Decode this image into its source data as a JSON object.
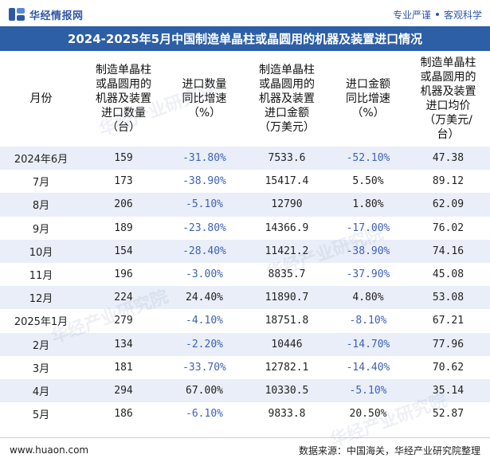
{
  "header": {
    "brand": "华经情报网",
    "slogan_left": "专业严谨",
    "slogan_right": "客观科学"
  },
  "title": "2024-2025年5月中国制造单晶柱或晶圆用的机器及装置进口情况",
  "columns": [
    "月份",
    "制造单晶柱或晶圆用的机器及装置进口数量（台）",
    "进口数量同比增速（%）",
    "制造单晶柱或晶圆用的机器及装置进口金额（万美元）",
    "进口金额同比增速（%）",
    "制造单晶柱或晶圆用的机器及装置进口均价（万美元/台）"
  ],
  "column_lines": [
    [
      "月份"
    ],
    [
      "制造单晶柱",
      "或晶圆用的",
      "机器及装置",
      "进口数量",
      "（台）"
    ],
    [
      "进口数量",
      "同比增速",
      "（%）"
    ],
    [
      "制造单晶柱",
      "或晶圆用的",
      "机器及装置",
      "进口金额",
      "（万美元）"
    ],
    [
      "进口金额",
      "同比增速",
      "（%）"
    ],
    [
      "制造单晶柱",
      "或晶圆用的",
      "机器及装置",
      "进口均价",
      "（万美元/",
      "台）"
    ]
  ],
  "rows": [
    {
      "month": "2024年6月",
      "qty": "159",
      "qty_yoy": "-31.80%",
      "amount": "7533.6",
      "amount_yoy": "-52.10%",
      "price": "47.38"
    },
    {
      "month": "7月",
      "qty": "173",
      "qty_yoy": "-38.90%",
      "amount": "15417.4",
      "amount_yoy": "5.50%",
      "price": "89.12"
    },
    {
      "month": "8月",
      "qty": "206",
      "qty_yoy": "-5.10%",
      "amount": "12790",
      "amount_yoy": "1.80%",
      "price": "62.09"
    },
    {
      "month": "9月",
      "qty": "189",
      "qty_yoy": "-23.80%",
      "amount": "14366.9",
      "amount_yoy": "-17.00%",
      "price": "76.02"
    },
    {
      "month": "10月",
      "qty": "154",
      "qty_yoy": "-28.40%",
      "amount": "11421.2",
      "amount_yoy": "-38.90%",
      "price": "74.16"
    },
    {
      "month": "11月",
      "qty": "196",
      "qty_yoy": "-3.00%",
      "amount": "8835.7",
      "amount_yoy": "-37.90%",
      "price": "45.08"
    },
    {
      "month": "12月",
      "qty": "224",
      "qty_yoy": "24.40%",
      "amount": "11890.7",
      "amount_yoy": "4.80%",
      "price": "53.08"
    },
    {
      "month": "2025年1月",
      "qty": "279",
      "qty_yoy": "-4.10%",
      "amount": "18751.8",
      "amount_yoy": "-8.10%",
      "price": "67.21"
    },
    {
      "month": "2月",
      "qty": "134",
      "qty_yoy": "-2.20%",
      "amount": "10446",
      "amount_yoy": "-14.70%",
      "price": "77.96"
    },
    {
      "month": "3月",
      "qty": "181",
      "qty_yoy": "-33.70%",
      "amount": "12782.1",
      "amount_yoy": "-14.40%",
      "price": "70.62"
    },
    {
      "month": "4月",
      "qty": "294",
      "qty_yoy": "67.00%",
      "amount": "10330.5",
      "amount_yoy": "-5.10%",
      "price": "35.14"
    },
    {
      "month": "5月",
      "qty": "186",
      "qty_yoy": "-6.10%",
      "amount": "9833.8",
      "amount_yoy": "20.50%",
      "price": "52.87"
    }
  ],
  "footer": {
    "website": "www.huaon.com",
    "source": "数据来源：中国海关，华经产业研究院整理"
  },
  "watermark": "华经产业研究院",
  "colors": {
    "brand_blue": "#2d5fa6",
    "stripe": "#e9eef8",
    "negative_text": "#3e62b6"
  },
  "icons": [
    "brand-logo-icon",
    "dot-separator-icon"
  ]
}
